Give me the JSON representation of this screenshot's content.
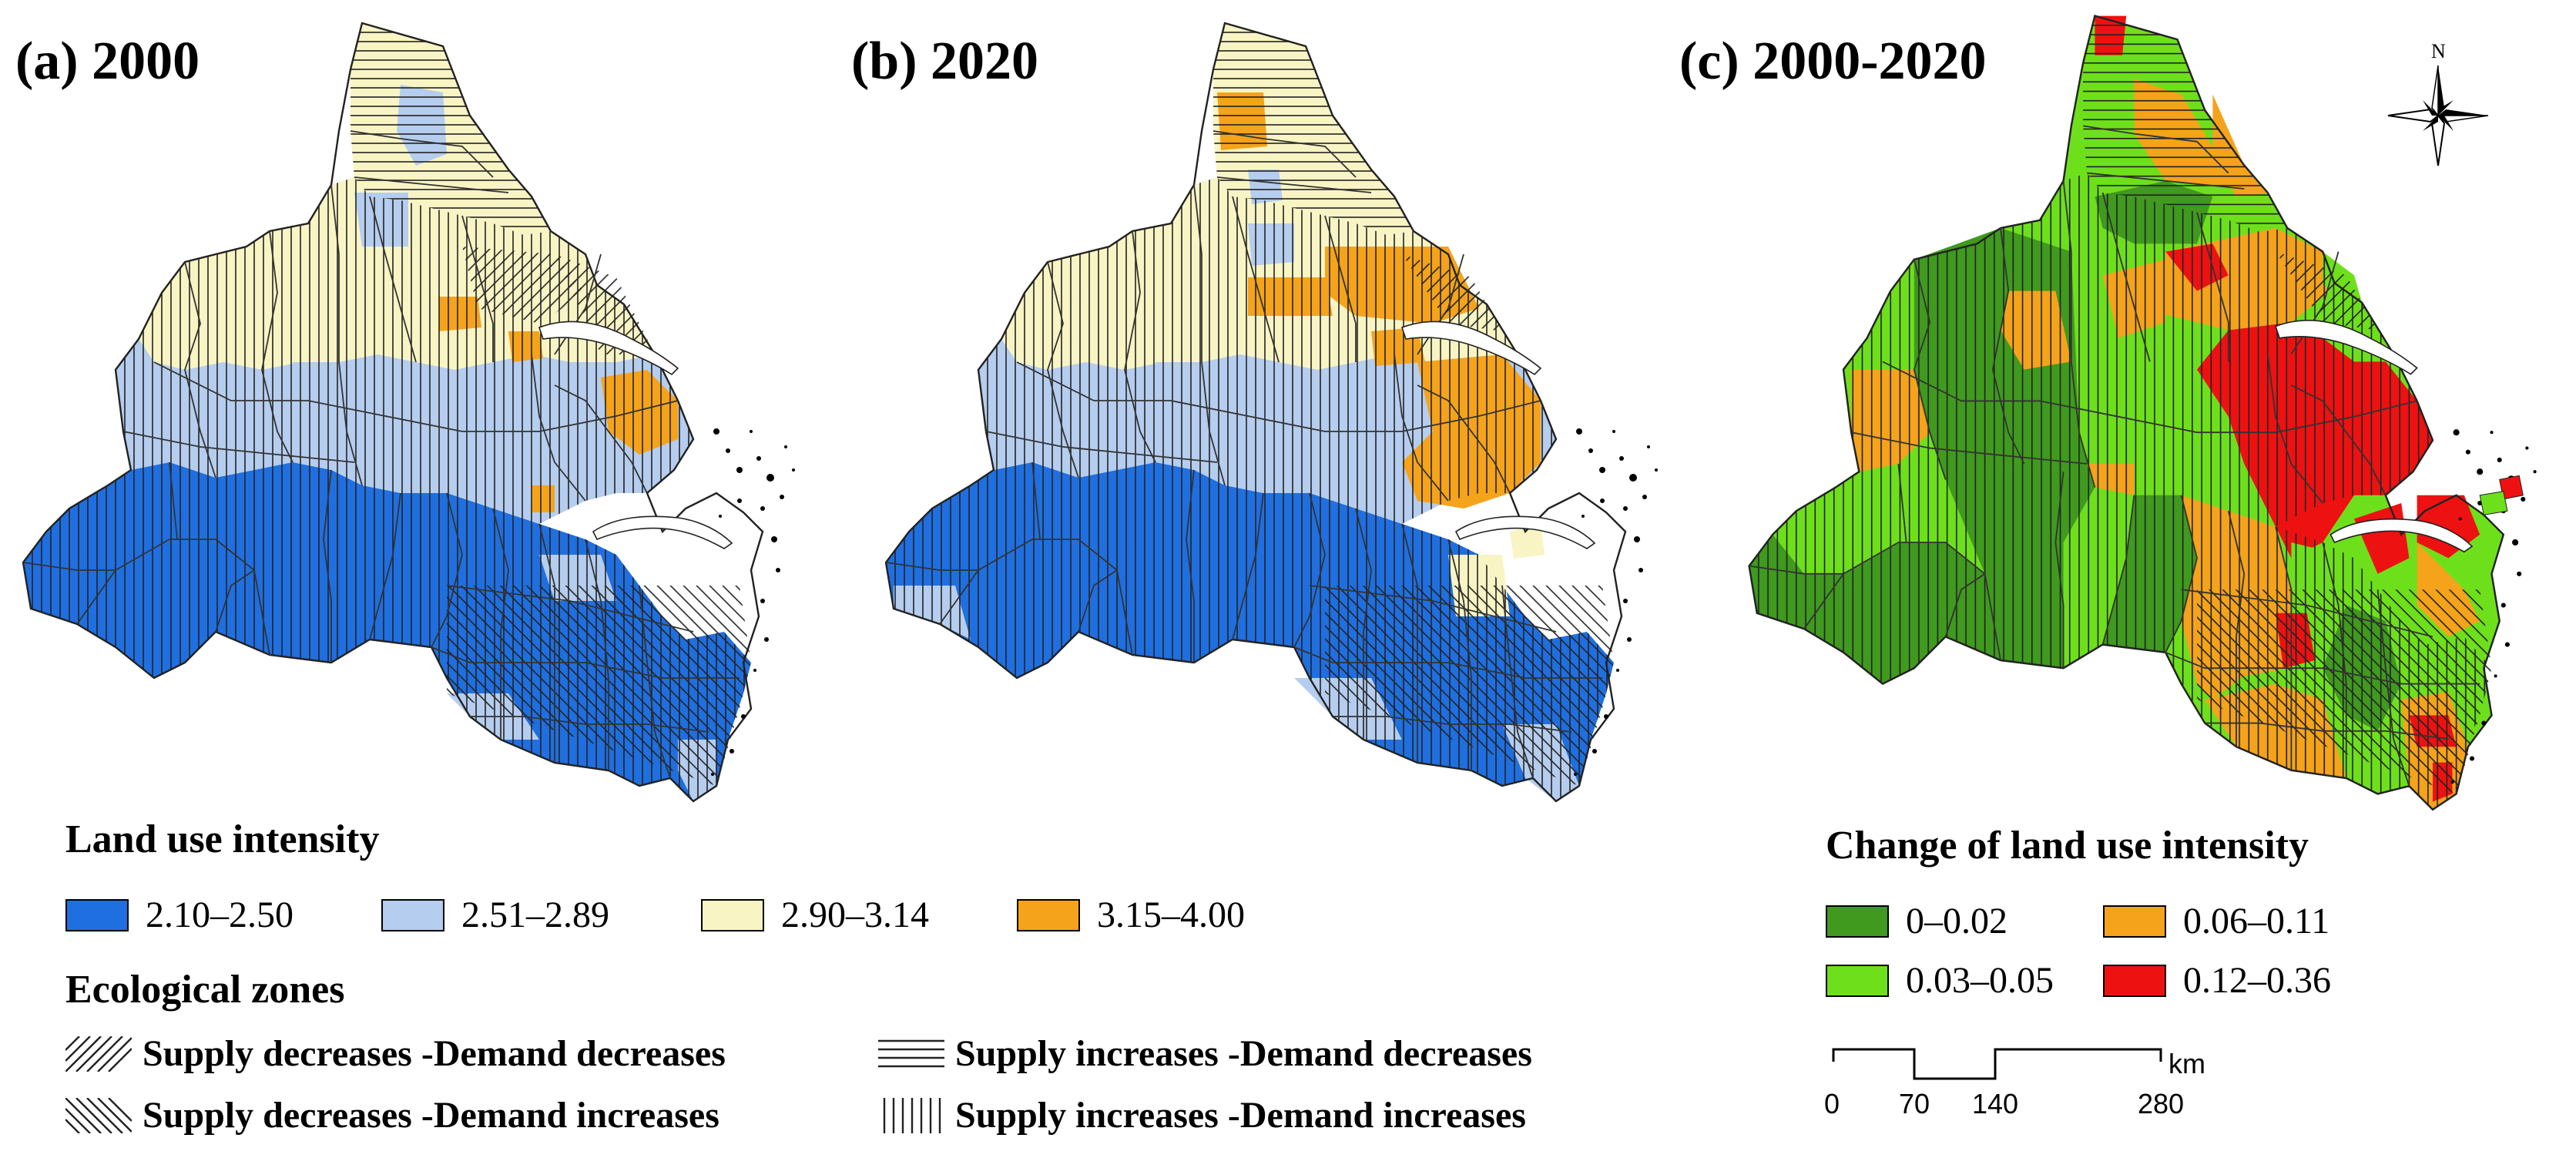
{
  "panels": {
    "a": {
      "label": "(a) 2000"
    },
    "b": {
      "label": "(b) 2020"
    },
    "c": {
      "label": "(c) 2000-2020"
    }
  },
  "legend_intensity": {
    "title": "Land use intensity",
    "classes": [
      {
        "label": "2.10–2.50",
        "color": "#1f6fe0"
      },
      {
        "label": "2.51–2.89",
        "color": "#b5cdee"
      },
      {
        "label": "2.90–3.14",
        "color": "#f8f4c4"
      },
      {
        "label": "3.15–4.00",
        "color": "#f5a31a"
      }
    ]
  },
  "legend_zones": {
    "title": "Ecological zones",
    "items": [
      {
        "label": "Supply decreases -Demand decreases",
        "pattern": "diagonal-forward"
      },
      {
        "label": "Supply increases -Demand decreases",
        "pattern": "horizontal"
      },
      {
        "label": "Supply decreases -Demand increases",
        "pattern": "diagonal-backward"
      },
      {
        "label": "Supply increases -Demand increases",
        "pattern": "vertical"
      }
    ]
  },
  "legend_change": {
    "title": "Change of land use intensity",
    "classes": [
      {
        "label": "0–0.02",
        "color": "#3f9a1e"
      },
      {
        "label": "0.06–0.11",
        "color": "#f5a31a"
      },
      {
        "label": "0.03–0.05",
        "color": "#6ee01b"
      },
      {
        "label": "0.12–0.36",
        "color": "#ee1111"
      }
    ]
  },
  "scale_bar": {
    "ticks": [
      "0",
      "70",
      "140",
      "280"
    ],
    "unit": "km"
  },
  "north_arrow": {
    "label": "N",
    "icon": "north-arrow-icon"
  }
}
